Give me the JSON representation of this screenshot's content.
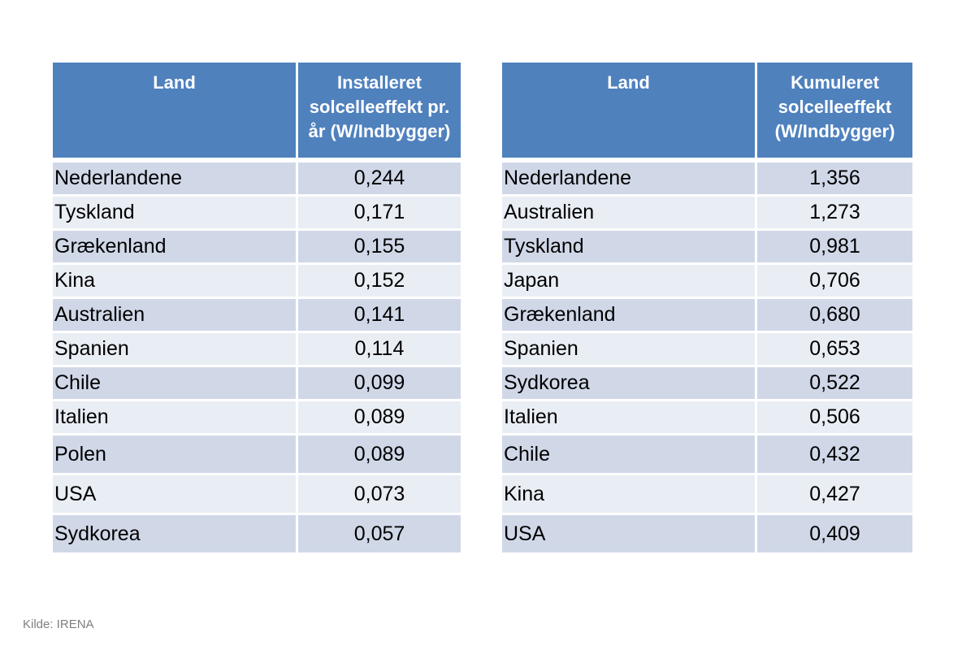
{
  "source": "Kilde: IRENA",
  "chart_data": [
    {
      "type": "table",
      "columns": [
        "Land",
        "Installeret solcelleeffekt pr. år (W/Indbygger)"
      ],
      "rows": [
        [
          "Nederlandene",
          "0,244"
        ],
        [
          "Tyskland",
          "0,171"
        ],
        [
          "Grækenland",
          "0,155"
        ],
        [
          "Kina",
          "0,152"
        ],
        [
          "Australien",
          "0,141"
        ],
        [
          "Spanien",
          "0,114"
        ],
        [
          "Chile",
          "0,099"
        ],
        [
          "Italien",
          "0,089"
        ],
        [
          "Polen",
          "0,089"
        ],
        [
          "USA",
          "0,073"
        ],
        [
          "Sydkorea",
          "0,057"
        ]
      ]
    },
    {
      "type": "table",
      "columns": [
        "Land",
        "Kumuleret solcelleeffekt (W/Indbygger)"
      ],
      "rows": [
        [
          "Nederlandene",
          "1,356"
        ],
        [
          "Australien",
          "1,273"
        ],
        [
          "Tyskland",
          "0,981"
        ],
        [
          "Japan",
          "0,706"
        ],
        [
          "Grækenland",
          "0,680"
        ],
        [
          "Spanien",
          "0,653"
        ],
        [
          "Sydkorea",
          "0,522"
        ],
        [
          "Italien",
          "0,506"
        ],
        [
          "Chile",
          "0,432"
        ],
        [
          "Kina",
          "0,427"
        ],
        [
          "USA",
          "0,409"
        ]
      ]
    }
  ]
}
